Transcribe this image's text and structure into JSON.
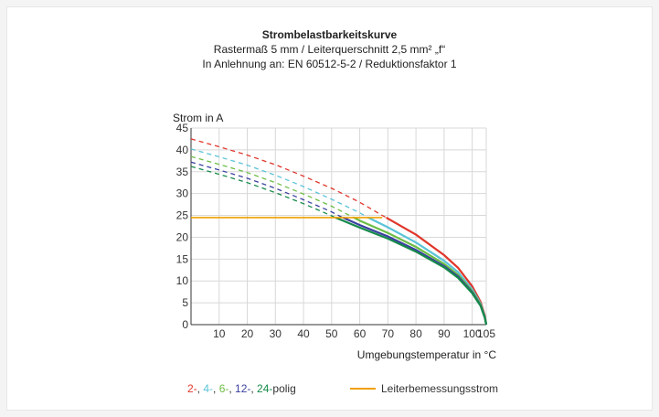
{
  "titles": {
    "main": "Strombelastbarkeitskurve",
    "line2": "Rastermaß 5 mm / Leiterquerschnitt 2,5 mm² „f“",
    "line3": "In Anlehnung an: EN 60512-5-2 / Reduktionsfaktor 1"
  },
  "chart_data": {
    "type": "line",
    "ylabel": "Strom in A",
    "xlabel": "Umgebungstemperatur in °C",
    "xlim": [
      0,
      105
    ],
    "ylim": [
      0,
      45
    ],
    "x_ticks": [
      "10",
      "20",
      "30",
      "40",
      "50",
      "60",
      "70",
      "80",
      "90",
      "100",
      "105"
    ],
    "y_ticks": [
      "0",
      "5",
      "10",
      "15",
      "20",
      "25",
      "30",
      "35",
      "40",
      "45"
    ],
    "grid": true,
    "series": [
      {
        "name": "2-",
        "color": "#e0362b",
        "points": [
          [
            0,
            42.5
          ],
          [
            10,
            40.7
          ],
          [
            20,
            38.8
          ],
          [
            30,
            36.6
          ],
          [
            40,
            34.0
          ],
          [
            50,
            31.2
          ],
          [
            60,
            28.0
          ],
          [
            68,
            25.0
          ],
          [
            70,
            24.3
          ],
          [
            80,
            20.6
          ],
          [
            90,
            15.9
          ],
          [
            95,
            13.0
          ],
          [
            100,
            8.8
          ],
          [
            103,
            5.2
          ],
          [
            104.5,
            2.0
          ],
          [
            105,
            0
          ]
        ]
      },
      {
        "name": "4-",
        "color": "#5bc3d8",
        "points": [
          [
            0,
            40.2
          ],
          [
            10,
            38.4
          ],
          [
            20,
            36.5
          ],
          [
            30,
            34.2
          ],
          [
            40,
            31.6
          ],
          [
            50,
            28.7
          ],
          [
            60,
            25.6
          ],
          [
            63,
            24.5
          ],
          [
            70,
            22.3
          ],
          [
            80,
            18.8
          ],
          [
            90,
            14.6
          ],
          [
            95,
            12.0
          ],
          [
            100,
            8.1
          ],
          [
            103,
            4.8
          ],
          [
            104.5,
            1.8
          ],
          [
            105,
            0
          ]
        ]
      },
      {
        "name": "6-",
        "color": "#6cbd45",
        "points": [
          [
            0,
            38.5
          ],
          [
            10,
            36.7
          ],
          [
            20,
            34.8
          ],
          [
            30,
            32.5
          ],
          [
            40,
            29.9
          ],
          [
            50,
            27.1
          ],
          [
            57,
            24.8
          ],
          [
            60,
            23.8
          ],
          [
            70,
            21.0
          ],
          [
            80,
            17.8
          ],
          [
            90,
            13.9
          ],
          [
            95,
            11.4
          ],
          [
            100,
            7.7
          ],
          [
            103,
            4.6
          ],
          [
            104.5,
            1.7
          ],
          [
            105,
            0
          ]
        ]
      },
      {
        "name": "12-",
        "color": "#3b3fa0",
        "points": [
          [
            0,
            37.2
          ],
          [
            10,
            35.4
          ],
          [
            20,
            33.5
          ],
          [
            30,
            31.2
          ],
          [
            40,
            28.6
          ],
          [
            50,
            25.8
          ],
          [
            53,
            24.8
          ],
          [
            60,
            22.8
          ],
          [
            70,
            20.2
          ],
          [
            80,
            17.1
          ],
          [
            90,
            13.4
          ],
          [
            95,
            11.0
          ],
          [
            100,
            7.4
          ],
          [
            103,
            4.4
          ],
          [
            104.5,
            1.6
          ],
          [
            105,
            0
          ]
        ]
      },
      {
        "name": "24-",
        "color": "#168a4a",
        "points": [
          [
            0,
            36.2
          ],
          [
            10,
            34.4
          ],
          [
            20,
            32.5
          ],
          [
            30,
            30.2
          ],
          [
            40,
            27.7
          ],
          [
            50,
            24.9
          ],
          [
            51,
            24.6
          ],
          [
            60,
            22.2
          ],
          [
            70,
            19.7
          ],
          [
            80,
            16.7
          ],
          [
            90,
            13.1
          ],
          [
            95,
            10.7
          ],
          [
            100,
            7.2
          ],
          [
            103,
            4.3
          ],
          [
            104.5,
            1.5
          ],
          [
            105,
            0
          ]
        ]
      }
    ],
    "rated_current": {
      "name": "Leiterbemessungsstrom",
      "color": "#f0a000",
      "y": 24.5,
      "x_end": 68
    }
  },
  "legend": {
    "items": [
      {
        "text": "2-",
        "color": "#e0362b"
      },
      {
        "text": ", ",
        "color": "#333333"
      },
      {
        "text": "4-",
        "color": "#5bc3d8"
      },
      {
        "text": ", ",
        "color": "#333333"
      },
      {
        "text": "6-",
        "color": "#6cbd45"
      },
      {
        "text": ", ",
        "color": "#333333"
      },
      {
        "text": "12-",
        "color": "#3b3fa0"
      },
      {
        "text": ", ",
        "color": "#333333"
      },
      {
        "text": "24-",
        "color": "#168a4a"
      },
      {
        "text": "polig",
        "color": "#333333"
      }
    ],
    "rated_label": "Leiterbemessungsstrom"
  }
}
